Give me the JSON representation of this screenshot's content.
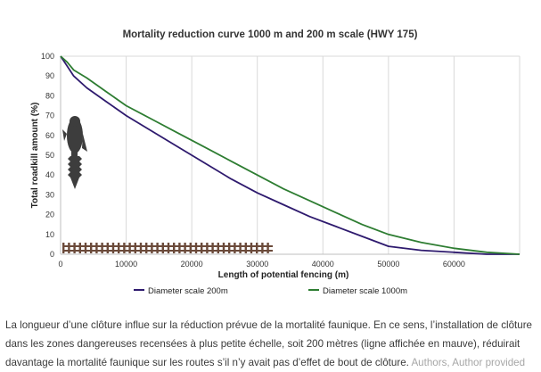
{
  "chart_data": {
    "type": "line",
    "title": "Mortality reduction curve 1000 m and 200 m  scale (HWY 175)",
    "xlabel": "Length of potential fencing (m)",
    "ylabel": "Total roadkill amount (%)",
    "xlim": [
      0,
      70000
    ],
    "ylim": [
      0,
      100
    ],
    "x_ticks": [
      0,
      10000,
      20000,
      30000,
      40000,
      50000,
      60000
    ],
    "y_ticks": [
      0,
      10,
      20,
      30,
      40,
      50,
      60,
      70,
      80,
      90,
      100
    ],
    "grid": "vertical",
    "legend_position": "bottom",
    "series": [
      {
        "name": "Diameter scale 200m",
        "color": "#2e1a6e",
        "points": [
          [
            0,
            100
          ],
          [
            1000,
            95
          ],
          [
            2000,
            90
          ],
          [
            4000,
            84
          ],
          [
            7000,
            77
          ],
          [
            10000,
            70
          ],
          [
            14000,
            62
          ],
          [
            18000,
            54
          ],
          [
            22000,
            46
          ],
          [
            26000,
            38
          ],
          [
            30000,
            31
          ],
          [
            34000,
            25
          ],
          [
            38000,
            19
          ],
          [
            42000,
            14
          ],
          [
            46000,
            9
          ],
          [
            50000,
            4
          ],
          [
            55000,
            2
          ],
          [
            60000,
            1
          ],
          [
            65000,
            0
          ],
          [
            70000,
            0
          ]
        ]
      },
      {
        "name": "Diameter scale 1000m",
        "color": "#2e7d32",
        "points": [
          [
            0,
            100
          ],
          [
            1000,
            97
          ],
          [
            2000,
            93
          ],
          [
            4000,
            89
          ],
          [
            7000,
            82
          ],
          [
            10000,
            75
          ],
          [
            14000,
            68
          ],
          [
            18000,
            61
          ],
          [
            22000,
            54
          ],
          [
            26000,
            47
          ],
          [
            30000,
            40
          ],
          [
            34000,
            33
          ],
          [
            38000,
            27
          ],
          [
            42000,
            21
          ],
          [
            46000,
            15
          ],
          [
            50000,
            10
          ],
          [
            55000,
            6
          ],
          [
            60000,
            3
          ],
          [
            65000,
            1
          ],
          [
            70000,
            0
          ]
        ]
      }
    ]
  },
  "legend": {
    "item_200m": "Diameter scale 200m",
    "item_1000m": "Diameter scale 1000m"
  },
  "caption": {
    "text": "La longueur d’une clôture influe sur la réduction prévue de la mortalité faunique. En ce sens, l’installation de clôture dans les zones dangereuses recensées à plus petite échelle, soit 200 mètres (ligne affichée en mauve), réduirait davantage la mortalité faunique sur les routes s’il n’y avait pas d’effet de bout de clôture.",
    "credit": "Authors, Author provided"
  },
  "decorations": {
    "animal_icon": "moose-silhouette-icon",
    "fence_icon": "fence-icon"
  }
}
